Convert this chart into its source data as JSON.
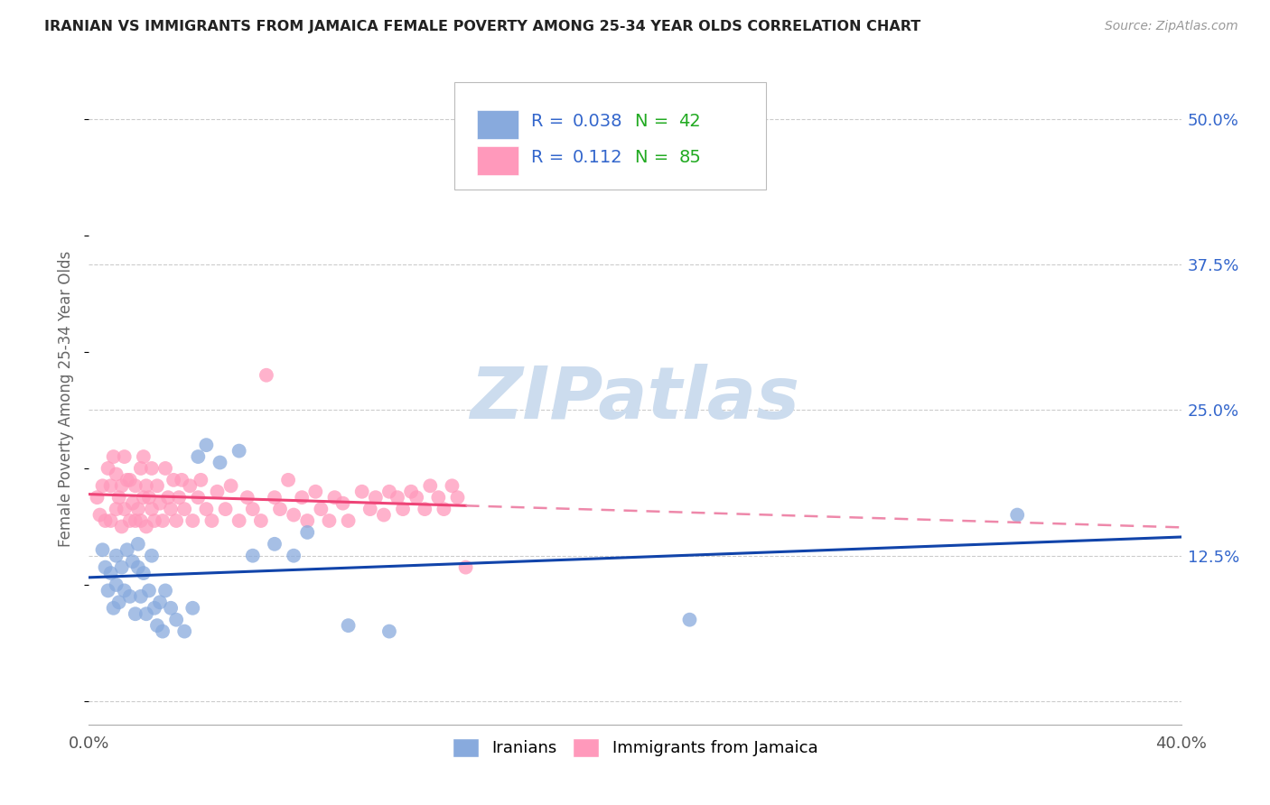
{
  "title": "IRANIAN VS IMMIGRANTS FROM JAMAICA FEMALE POVERTY AMONG 25-34 YEAR OLDS CORRELATION CHART",
  "source": "Source: ZipAtlas.com",
  "ylabel": "Female Poverty Among 25-34 Year Olds",
  "xlim": [
    0.0,
    0.4
  ],
  "ylim": [
    -0.02,
    0.54
  ],
  "xticks": [
    0.0,
    0.1,
    0.2,
    0.3,
    0.4
  ],
  "xticklabels": [
    "0.0%",
    "",
    "",
    "",
    "40.0%"
  ],
  "yticks_right": [
    0.0,
    0.125,
    0.25,
    0.375,
    0.5
  ],
  "yticklabels_right": [
    "",
    "12.5%",
    "25.0%",
    "37.5%",
    "50.0%"
  ],
  "blue_color": "#88AADD",
  "pink_color": "#FF99BB",
  "blue_line_color": "#1144AA",
  "pink_line_color": "#EE4477",
  "pink_line_dash_color": "#EE88AA",
  "grid_color": "#CCCCCC",
  "background_color": "#FFFFFF",
  "R_blue": 0.038,
  "N_blue": 42,
  "R_pink": 0.112,
  "N_pink": 85,
  "legend_R_color": "#3366CC",
  "legend_N_color": "#22AA22",
  "iranians_x": [
    0.005,
    0.006,
    0.007,
    0.008,
    0.009,
    0.01,
    0.01,
    0.011,
    0.012,
    0.013,
    0.014,
    0.015,
    0.016,
    0.017,
    0.018,
    0.018,
    0.019,
    0.02,
    0.021,
    0.022,
    0.023,
    0.024,
    0.025,
    0.026,
    0.027,
    0.028,
    0.03,
    0.032,
    0.035,
    0.038,
    0.04,
    0.043,
    0.048,
    0.055,
    0.06,
    0.068,
    0.075,
    0.08,
    0.095,
    0.11,
    0.22,
    0.34
  ],
  "iranians_y": [
    0.13,
    0.115,
    0.095,
    0.11,
    0.08,
    0.1,
    0.125,
    0.085,
    0.115,
    0.095,
    0.13,
    0.09,
    0.12,
    0.075,
    0.115,
    0.135,
    0.09,
    0.11,
    0.075,
    0.095,
    0.125,
    0.08,
    0.065,
    0.085,
    0.06,
    0.095,
    0.08,
    0.07,
    0.06,
    0.08,
    0.21,
    0.22,
    0.205,
    0.215,
    0.125,
    0.135,
    0.125,
    0.145,
    0.065,
    0.06,
    0.07,
    0.16
  ],
  "jamaica_x": [
    0.003,
    0.004,
    0.005,
    0.006,
    0.007,
    0.008,
    0.008,
    0.009,
    0.01,
    0.01,
    0.011,
    0.012,
    0.012,
    0.013,
    0.013,
    0.014,
    0.015,
    0.015,
    0.016,
    0.017,
    0.017,
    0.018,
    0.019,
    0.019,
    0.02,
    0.02,
    0.021,
    0.021,
    0.022,
    0.023,
    0.023,
    0.024,
    0.025,
    0.026,
    0.027,
    0.028,
    0.029,
    0.03,
    0.031,
    0.032,
    0.033,
    0.034,
    0.035,
    0.037,
    0.038,
    0.04,
    0.041,
    0.043,
    0.045,
    0.047,
    0.05,
    0.052,
    0.055,
    0.058,
    0.06,
    0.063,
    0.065,
    0.068,
    0.07,
    0.073,
    0.075,
    0.078,
    0.08,
    0.083,
    0.085,
    0.088,
    0.09,
    0.093,
    0.095,
    0.1,
    0.103,
    0.105,
    0.108,
    0.11,
    0.113,
    0.115,
    0.118,
    0.12,
    0.123,
    0.125,
    0.128,
    0.13,
    0.133,
    0.135,
    0.138
  ],
  "jamaica_y": [
    0.175,
    0.16,
    0.185,
    0.155,
    0.2,
    0.155,
    0.185,
    0.21,
    0.165,
    0.195,
    0.175,
    0.15,
    0.185,
    0.165,
    0.21,
    0.19,
    0.155,
    0.19,
    0.17,
    0.155,
    0.185,
    0.165,
    0.2,
    0.155,
    0.175,
    0.21,
    0.15,
    0.185,
    0.175,
    0.165,
    0.2,
    0.155,
    0.185,
    0.17,
    0.155,
    0.2,
    0.175,
    0.165,
    0.19,
    0.155,
    0.175,
    0.19,
    0.165,
    0.185,
    0.155,
    0.175,
    0.19,
    0.165,
    0.155,
    0.18,
    0.165,
    0.185,
    0.155,
    0.175,
    0.165,
    0.155,
    0.28,
    0.175,
    0.165,
    0.19,
    0.16,
    0.175,
    0.155,
    0.18,
    0.165,
    0.155,
    0.175,
    0.17,
    0.155,
    0.18,
    0.165,
    0.175,
    0.16,
    0.18,
    0.175,
    0.165,
    0.18,
    0.175,
    0.165,
    0.185,
    0.175,
    0.165,
    0.185,
    0.175,
    0.115
  ],
  "watermark_text": "ZIPatlas",
  "watermark_color": "#CCDCEE",
  "scatter_size": 130,
  "scatter_alpha": 0.75
}
